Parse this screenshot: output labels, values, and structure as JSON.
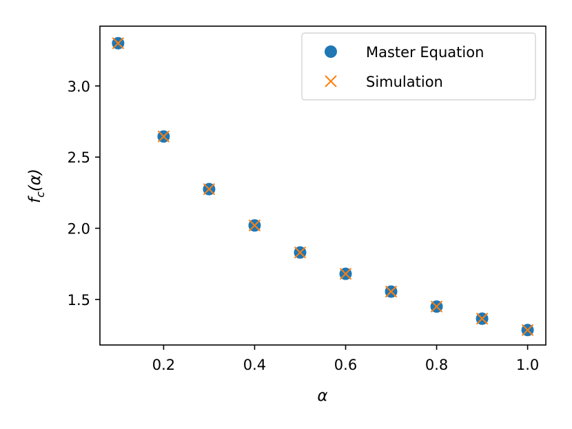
{
  "chart_data": {
    "type": "scatter",
    "title": "",
    "xlabel": "α",
    "ylabel_main": "f",
    "ylabel_sub": "c",
    "ylabel_arg": "(α)",
    "xlim": [
      0.06,
      1.04
    ],
    "ylim": [
      1.18,
      3.42
    ],
    "grid": false,
    "legend_position": "top-right",
    "xticks": [
      0.2,
      0.4,
      0.6,
      0.8,
      1.0
    ],
    "xtick_labels": [
      "0.2",
      "0.4",
      "0.6",
      "0.8",
      "1.0"
    ],
    "yticks": [
      1.5,
      2.0,
      2.5,
      3.0
    ],
    "ytick_labels": [
      "1.5",
      "2.0",
      "2.5",
      "3.0"
    ],
    "x": [
      0.1,
      0.2,
      0.3,
      0.4,
      0.5,
      0.6,
      0.7,
      0.8,
      0.9,
      1.0
    ],
    "series": [
      {
        "name": "Master Equation",
        "marker": "circle",
        "color": "#1f77b4",
        "values": [
          3.3,
          2.645,
          2.275,
          2.02,
          1.83,
          1.68,
          1.555,
          1.45,
          1.365,
          1.285
        ]
      },
      {
        "name": "Simulation",
        "marker": "x",
        "color": "#ff7f0e",
        "values": [
          3.3,
          2.645,
          2.275,
          2.02,
          1.83,
          1.68,
          1.555,
          1.45,
          1.365,
          1.285
        ]
      }
    ]
  }
}
